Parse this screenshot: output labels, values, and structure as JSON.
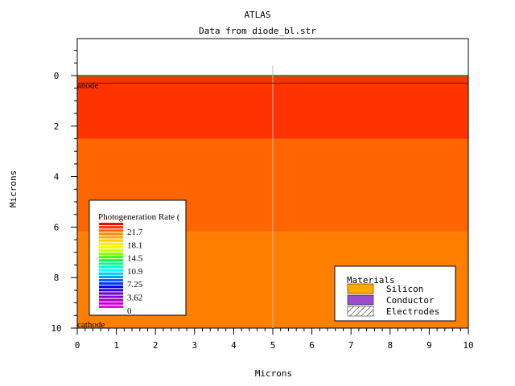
{
  "chart_data": {
    "type": "heatmap",
    "title": "ATLAS",
    "subtitle": "Data from diode_bl.str",
    "xlabel": "Microns",
    "ylabel": "Microns",
    "xlim": [
      0,
      10
    ],
    "ylim": [
      -1.5,
      10
    ],
    "y_inverted": true,
    "x_ticks": [
      "0",
      "1",
      "2",
      "3",
      "4",
      "5",
      "6",
      "7",
      "8",
      "9",
      "10"
    ],
    "y_ticks": [
      "0",
      "2",
      "4",
      "6",
      "8",
      "10"
    ],
    "regions": [
      {
        "y_from": 0,
        "y_to": 2.5,
        "color": "#ff3300"
      },
      {
        "y_from": 2.5,
        "y_to": 6.2,
        "color": "#ff6600"
      },
      {
        "y_from": 6.2,
        "y_to": 10,
        "color": "#ff8000"
      }
    ],
    "electrode_labels": [
      {
        "name": "anode",
        "y": 0.3
      },
      {
        "name": "cathode",
        "y": 10
      }
    ],
    "vertical_cut_x": 5,
    "legend": {
      "title": "Photogeneration Rate (",
      "labels": [
        "21.7",
        "18.1",
        "14.5",
        "10.9",
        "7.25",
        "3.62",
        "0"
      ],
      "colors": [
        "#ff0000",
        "#ff3300",
        "#ff6600",
        "#ff8800",
        "#ffaa00",
        "#ffcc00",
        "#ffee00",
        "#eeff00",
        "#ccff00",
        "#88ff00",
        "#44ff00",
        "#00ff44",
        "#00ff88",
        "#00ffcc",
        "#00ffff",
        "#00ccff",
        "#0099ff",
        "#0066ff",
        "#0033ff",
        "#0000ee",
        "#3300dd",
        "#6600cc",
        "#8800cc",
        "#aa00cc",
        "#cc00cc",
        "#ee00ee"
      ]
    },
    "materials": {
      "title": "Materials",
      "items": [
        {
          "name": "Silicon",
          "color": "#ffaa00",
          "pattern": "solid"
        },
        {
          "name": "Conductor",
          "color": "#9b4dca",
          "pattern": "solid"
        },
        {
          "name": "Electrodes",
          "color": "#ffffff",
          "pattern": "hatch"
        }
      ]
    }
  }
}
